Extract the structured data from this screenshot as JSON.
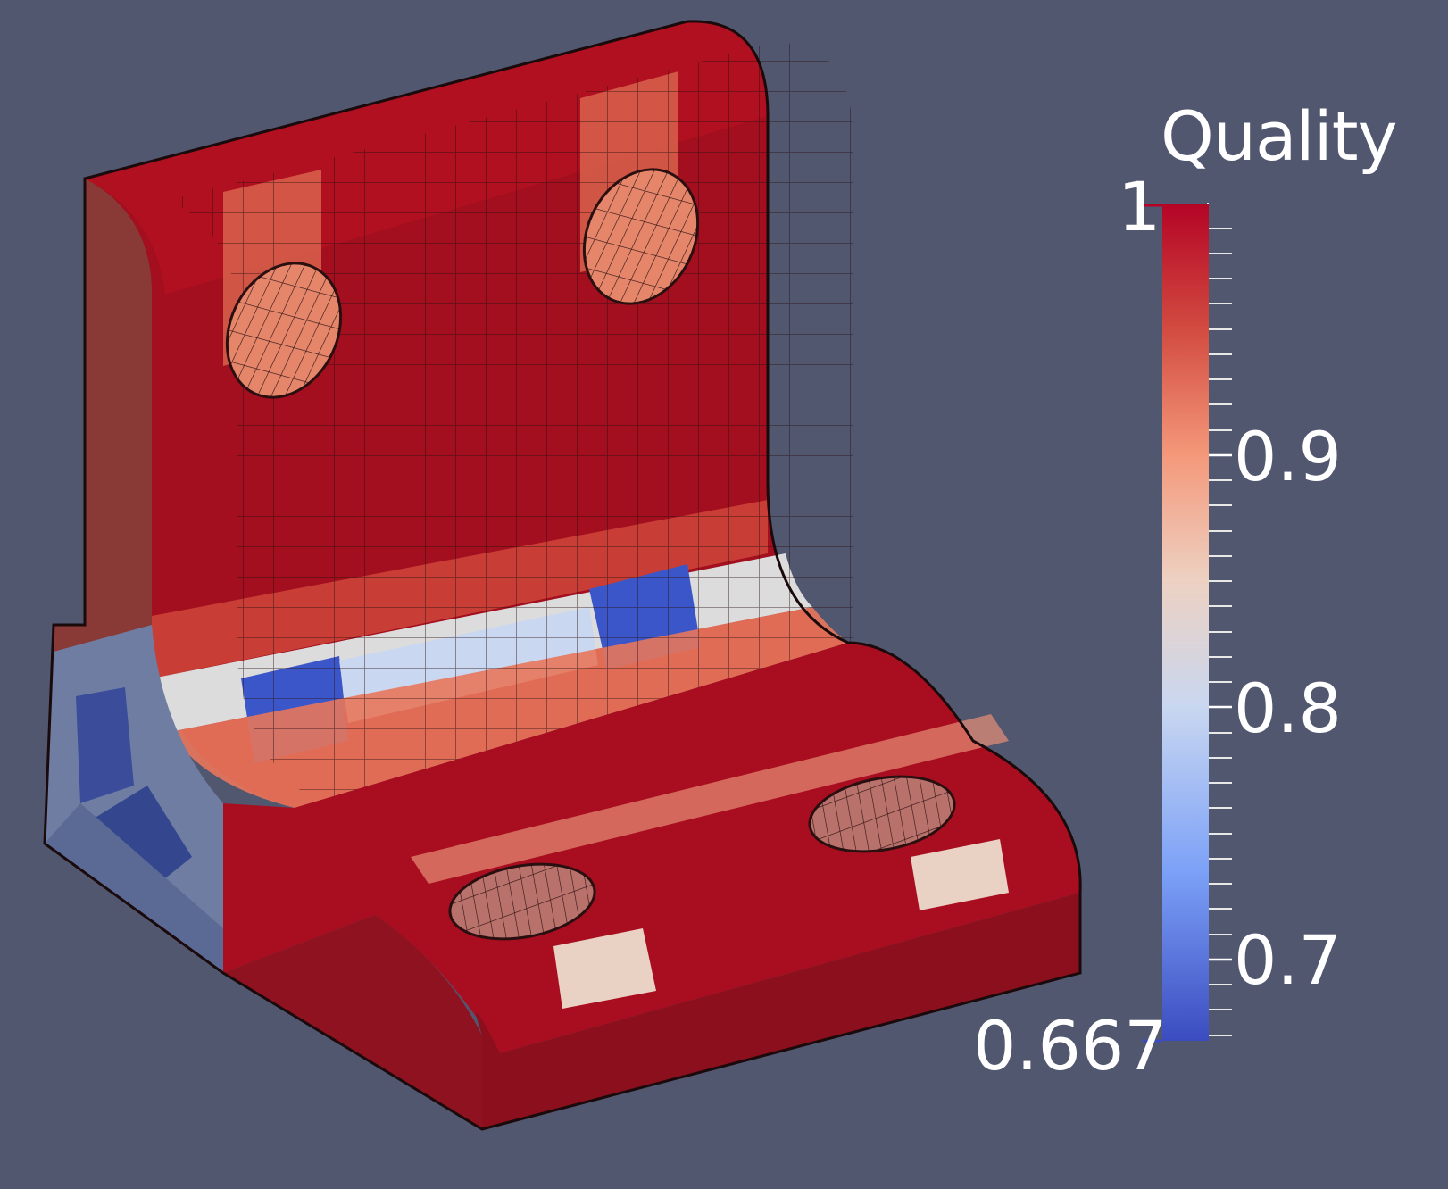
{
  "legend": {
    "title": "Quality",
    "max_label": "1",
    "min_label": "0.667",
    "ticks": [
      "0.9",
      "0.8",
      "0.7"
    ],
    "range": [
      0.667,
      1.0
    ],
    "tick_values": [
      0.9,
      0.8,
      0.7
    ]
  },
  "colors": {
    "background": "#525770",
    "colormap": [
      "#3b4cc0",
      "#7ba0f7",
      "#c9d7f0",
      "#edd1c2",
      "#f4987a",
      "#d24b40",
      "#b40426"
    ]
  }
}
